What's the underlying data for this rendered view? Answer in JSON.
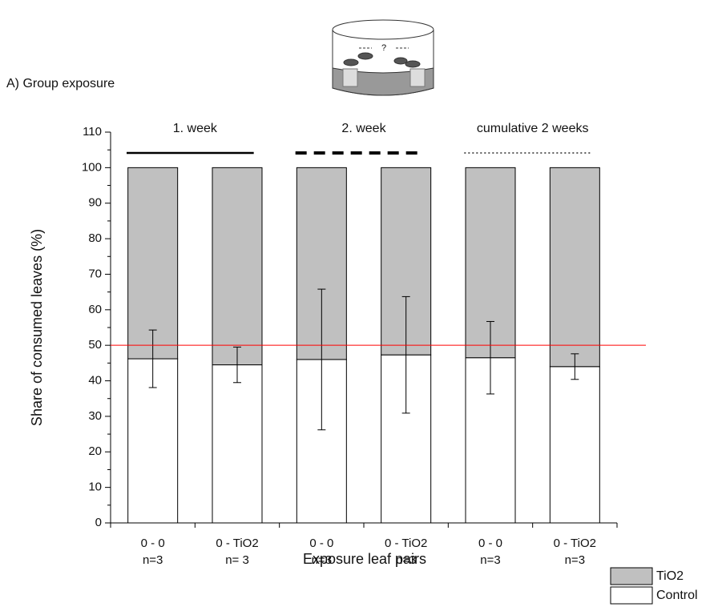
{
  "chart_data": {
    "type": "stacked-bar",
    "panel_label": "A) Group exposure",
    "x_label": "Exposure leaf pairs",
    "y_label": "Share of consumed leaves (%)",
    "categories": [
      "0 - 0",
      "0 - TiO2",
      "0 - 0",
      "0 - TiO2",
      "0 - 0",
      "0 - TiO2"
    ],
    "sample_sizes": [
      "n=3",
      "n= 3",
      "n=3",
      "n=3",
      "n=3",
      "n=3"
    ],
    "series": [
      {
        "name": "TiO2",
        "color": "#c0c0c0",
        "values": [
          53.8,
          55.5,
          54.0,
          52.7,
          53.5,
          56.0
        ]
      },
      {
        "name": "Control",
        "color": "#ffffff",
        "values": [
          46.2,
          44.5,
          46.0,
          47.3,
          46.5,
          44.0
        ],
        "errors": [
          8.1,
          5.0,
          19.8,
          16.4,
          10.2,
          3.6
        ]
      }
    ],
    "groups": [
      {
        "label": "1. week",
        "span": 2,
        "line_style": "solid"
      },
      {
        "label": "2. week",
        "span": 2,
        "line_style": "dashed"
      },
      {
        "label": "cumulative 2 weeks",
        "span": 2,
        "line_style": "dotted"
      }
    ],
    "reference_line": {
      "value": 50,
      "color": "#ff0000"
    },
    "ylim": [
      0,
      110
    ],
    "yticks": [
      0,
      10,
      20,
      30,
      40,
      50,
      60,
      70,
      80,
      90,
      100,
      110
    ],
    "legend": "bottom-right"
  }
}
